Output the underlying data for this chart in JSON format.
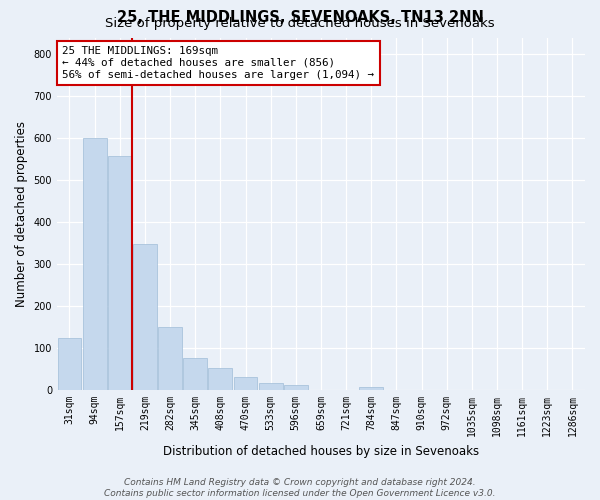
{
  "title": "25, THE MIDDLINGS, SEVENOAKS, TN13 2NN",
  "subtitle": "Size of property relative to detached houses in Sevenoaks",
  "xlabel": "Distribution of detached houses by size in Sevenoaks",
  "ylabel": "Number of detached properties",
  "bar_labels": [
    "31sqm",
    "94sqm",
    "157sqm",
    "219sqm",
    "282sqm",
    "345sqm",
    "408sqm",
    "470sqm",
    "533sqm",
    "596sqm",
    "659sqm",
    "721sqm",
    "784sqm",
    "847sqm",
    "910sqm",
    "972sqm",
    "1035sqm",
    "1098sqm",
    "1161sqm",
    "1223sqm",
    "1286sqm"
  ],
  "bar_values": [
    125,
    600,
    558,
    347,
    150,
    77,
    53,
    32,
    17,
    13,
    0,
    0,
    8,
    0,
    0,
    0,
    0,
    0,
    0,
    0,
    0
  ],
  "bar_color": "#c5d8ed",
  "bar_edge_color": "#a0bdd8",
  "vline_color": "#cc0000",
  "ylim": [
    0,
    840
  ],
  "yticks": [
    0,
    100,
    200,
    300,
    400,
    500,
    600,
    700,
    800
  ],
  "annotation_text_line1": "25 THE MIDDLINGS: 169sqm",
  "annotation_text_line2": "← 44% of detached houses are smaller (856)",
  "annotation_text_line3": "56% of semi-detached houses are larger (1,094) →",
  "annotation_box_color": "#ffffff",
  "annotation_box_edge": "#cc0000",
  "footer_line1": "Contains HM Land Registry data © Crown copyright and database right 2024.",
  "footer_line2": "Contains public sector information licensed under the Open Government Licence v3.0.",
  "bg_color": "#eaf0f8",
  "plot_bg_color": "#eaf0f8",
  "title_fontsize": 10.5,
  "subtitle_fontsize": 9.5,
  "axis_label_fontsize": 8.5,
  "tick_fontsize": 7,
  "annotation_fontsize": 7.8,
  "footer_fontsize": 6.5
}
